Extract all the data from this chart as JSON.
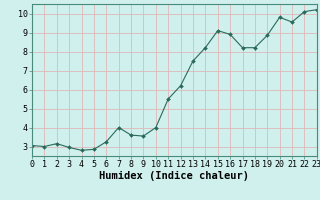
{
  "x": [
    0,
    1,
    2,
    3,
    4,
    5,
    6,
    7,
    8,
    9,
    10,
    11,
    12,
    13,
    14,
    15,
    16,
    17,
    18,
    19,
    20,
    21,
    22,
    23
  ],
  "y": [
    3.05,
    3.0,
    3.15,
    2.95,
    2.8,
    2.85,
    3.25,
    4.0,
    3.6,
    3.55,
    4.0,
    5.5,
    6.2,
    7.5,
    8.2,
    9.1,
    8.9,
    8.2,
    8.2,
    8.85,
    9.8,
    9.55,
    10.1,
    10.2
  ],
  "xlabel": "Humidex (Indice chaleur)",
  "xlim": [
    0,
    23
  ],
  "ylim": [
    2.5,
    10.5
  ],
  "bg_color": "#d0f0ee",
  "grid_color": "#e0b8b8",
  "line_color": "#2a6a5a",
  "marker_color": "#2a6a5a",
  "spine_color": "#4a8a7a",
  "yticks": [
    3,
    4,
    5,
    6,
    7,
    8,
    9,
    10
  ],
  "xticks": [
    0,
    1,
    2,
    3,
    4,
    5,
    6,
    7,
    8,
    9,
    10,
    11,
    12,
    13,
    14,
    15,
    16,
    17,
    18,
    19,
    20,
    21,
    22,
    23
  ],
  "tick_fontsize": 6.0,
  "xlabel_fontsize": 7.5
}
